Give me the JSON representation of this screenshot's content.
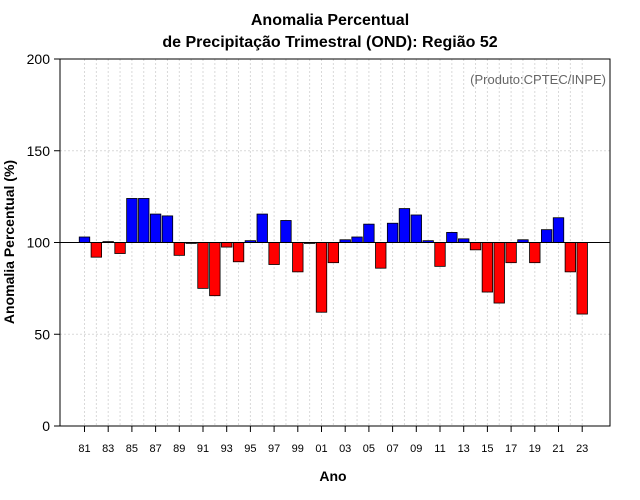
{
  "chart_data": {
    "type": "bar",
    "title_line1": "Anomalia Percentual",
    "title_line2": "de Precipitação Trimestral (OND): Região 52",
    "xlabel": "Ano",
    "ylabel": "Anomalia Percentual (%)",
    "credit": "(Produto:CPTEC/INPE)",
    "baseline": 100,
    "ylim": [
      0,
      200
    ],
    "yticks": [
      0,
      50,
      100,
      150,
      200
    ],
    "grid": true,
    "categories": [
      "81",
      "82",
      "83",
      "84",
      "85",
      "86",
      "87",
      "88",
      "89",
      "90",
      "91",
      "92",
      "93",
      "94",
      "95",
      "96",
      "97",
      "98",
      "99",
      "00",
      "01",
      "02",
      "03",
      "04",
      "05",
      "06",
      "07",
      "08",
      "09",
      "10",
      "11",
      "12",
      "13",
      "14",
      "15",
      "16",
      "17",
      "18",
      "19",
      "20",
      "21",
      "22",
      "23"
    ],
    "xtick_labels": [
      "81",
      "83",
      "85",
      "87",
      "89",
      "91",
      "93",
      "95",
      "97",
      "99",
      "01",
      "03",
      "05",
      "07",
      "09",
      "11",
      "13",
      "15",
      "17",
      "19",
      "21",
      "23"
    ],
    "values": [
      103,
      92,
      100.5,
      94,
      124,
      124,
      115.5,
      114.5,
      93,
      99.5,
      75,
      71,
      97.5,
      89.5,
      101,
      115.5,
      88,
      112,
      84,
      99.5,
      62,
      89,
      101.5,
      103,
      110,
      86,
      110.5,
      118.5,
      115,
      101,
      87,
      105.5,
      102,
      96,
      73,
      67,
      89,
      101.5,
      89,
      107,
      113.5,
      84,
      61
    ],
    "colors": {
      "above": "#0000ff",
      "below": "#ff0000",
      "grid": "#d9d9d9"
    }
  }
}
